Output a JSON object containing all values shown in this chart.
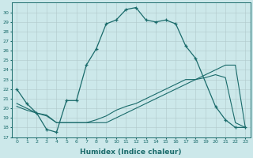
{
  "xlabel": "Humidex (Indice chaleur)",
  "ylabel": "",
  "background_color": "#cce8ea",
  "grid_color": "#b0c8ca",
  "line_color": "#1a6b6b",
  "xlim": [
    -0.5,
    23.5
  ],
  "ylim": [
    17,
    31
  ],
  "yticks": [
    17,
    18,
    19,
    20,
    21,
    22,
    23,
    24,
    25,
    26,
    27,
    28,
    29,
    30
  ],
  "xticks": [
    0,
    1,
    2,
    3,
    4,
    5,
    6,
    7,
    8,
    9,
    10,
    11,
    12,
    13,
    14,
    15,
    16,
    17,
    18,
    19,
    20,
    21,
    22,
    23
  ],
  "series1_x": [
    0,
    1,
    2,
    3,
    4,
    5,
    6,
    7,
    8,
    9,
    10,
    11,
    12,
    13,
    14,
    15,
    16,
    17,
    18,
    20,
    21,
    22,
    23
  ],
  "series1_y": [
    22.0,
    20.5,
    19.5,
    17.8,
    17.5,
    20.8,
    20.8,
    24.5,
    26.2,
    28.8,
    29.2,
    30.3,
    30.5,
    29.2,
    29.0,
    29.2,
    28.8,
    26.5,
    25.2,
    20.2,
    18.8,
    18.0,
    18.0
  ],
  "series2_x": [
    0,
    1,
    2,
    3,
    4,
    5,
    6,
    7,
    8,
    9,
    10,
    11,
    12,
    13,
    14,
    15,
    16,
    17,
    18,
    19,
    20,
    21,
    22,
    23
  ],
  "series2_y": [
    20.5,
    20.0,
    19.5,
    19.3,
    18.5,
    18.5,
    18.5,
    18.5,
    18.5,
    18.5,
    19.0,
    19.5,
    20.0,
    20.5,
    21.0,
    21.5,
    22.0,
    22.5,
    23.0,
    23.5,
    24.0,
    24.5,
    24.5,
    18.0
  ],
  "series3_x": [
    0,
    1,
    2,
    3,
    4,
    5,
    6,
    7,
    8,
    9,
    10,
    11,
    12,
    13,
    14,
    15,
    16,
    17,
    18,
    19,
    20,
    21,
    22,
    23
  ],
  "series3_y": [
    20.2,
    19.8,
    19.5,
    19.2,
    18.5,
    18.5,
    18.5,
    18.5,
    18.8,
    19.2,
    19.8,
    20.2,
    20.5,
    21.0,
    21.5,
    22.0,
    22.5,
    23.0,
    23.0,
    23.2,
    23.5,
    23.2,
    18.5,
    18.0
  ]
}
